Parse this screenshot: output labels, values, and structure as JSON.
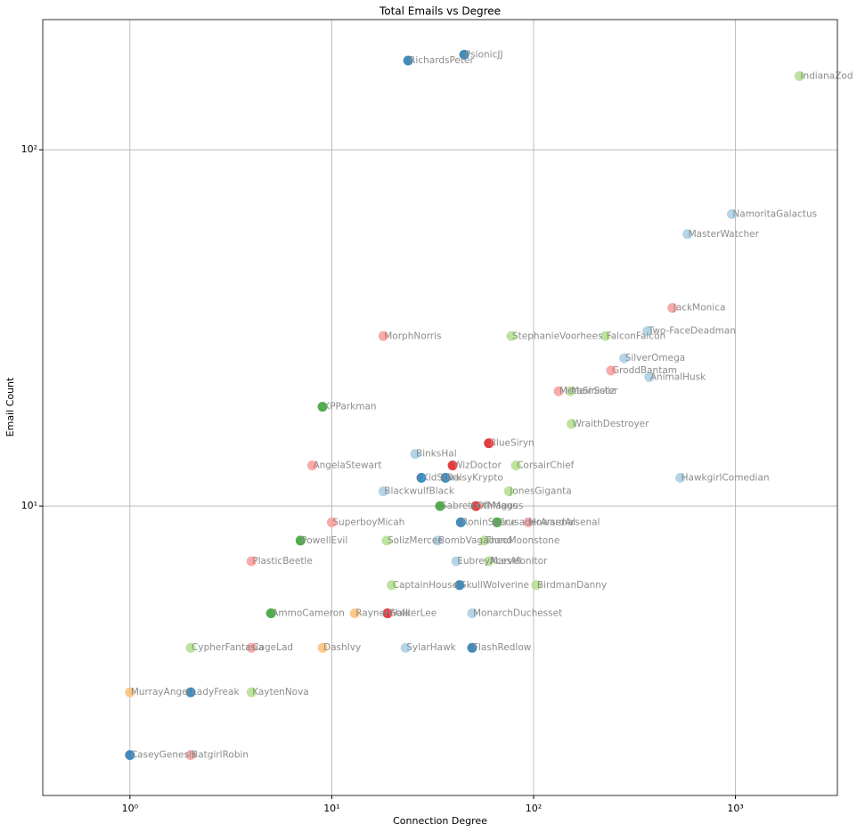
{
  "chart_data": {
    "type": "scatter",
    "title": "Total Emails vs Degree",
    "x_label": "Connection Degree",
    "y_label": "Email Count",
    "log_x": true,
    "log_y": true,
    "grid": true,
    "xlim": [
      0.37,
      3200
    ],
    "ylim": [
      1.54,
      232
    ],
    "xticks": [
      {
        "value": 1,
        "label": "10⁰"
      },
      {
        "value": 10,
        "label": "10¹"
      },
      {
        "value": 100,
        "label": "10²"
      },
      {
        "value": 1000,
        "label": "10³"
      }
    ],
    "yticks": [
      {
        "value": 10,
        "label": "10¹"
      },
      {
        "value": 100,
        "label": "10²"
      }
    ],
    "labels": [
      "IndianaZod",
      "PsionicJJ",
      "RichardsPeter",
      "NamoritaGalactus",
      "MasterWatcher",
      "JackMonica",
      "Two-FaceDeadman",
      "StephanieVoorhees",
      "FalconFalcon",
      "MorphNorris",
      "SilverOmega",
      "GroddBantam",
      "AnimalHusk",
      "MetaSinister",
      "MainSoliz",
      "XPParkman",
      "WraithDestroyer",
      "BlueSiryn",
      "BinksHal",
      "AngelaStewart",
      "WizDoctor",
      "CorsairChief",
      "HawkgirlComedian",
      "KidStark",
      "DaisyKrypto",
      "BlackwulfBlack",
      "JonesGiganta",
      "SabretoothMagus",
      "OfMagus",
      "SuperboyMicah",
      "RoninSpace",
      "CrusaderArsenal",
      "HowardArsenal",
      "PowellEvil",
      "SolizMercer",
      "BombVagabond",
      "TheoMoonstone",
      "PlasticBeetle",
      "EubreyMarvel",
      "AcesMonitor",
      "CaptainHouse",
      "BirdmanDanny",
      "SkullWolverine",
      "AmmoCameron",
      "RaynerGold",
      "WalkerLee",
      "MonarchDuchesset",
      "CypherFantasia",
      "CageLad",
      "DashIvy",
      "SylarHawk",
      "FlashRedlow",
      "MurrayAngel",
      "LadyFreak",
      "KaytenNova",
      "CaseyGenesis",
      "BatgirlRobin"
    ],
    "x": [
      2075,
      45.3,
      23.9,
      959,
      578,
      487,
      366,
      77.6,
      227,
      18,
      281,
      242,
      374,
      133,
      152,
      9,
      154,
      60,
      25.9,
      8,
      39.7,
      81.7,
      533,
      27.8,
      36.6,
      18,
      75.4,
      34.4,
      51.8,
      10,
      43.6,
      65.9,
      94,
      7,
      18.7,
      33.4,
      57,
      4,
      41.4,
      60,
      19.8,
      103,
      43,
      5,
      13,
      18.9,
      49.6,
      2,
      4,
      9,
      23.2,
      49.6,
      1,
      2,
      4,
      1,
      2
    ],
    "y": [
      161,
      185,
      178,
      66,
      58,
      36,
      31,
      30,
      30,
      30,
      26,
      24,
      23,
      21,
      21,
      19,
      17,
      15,
      14,
      13,
      13,
      13,
      12,
      12,
      12,
      11,
      11,
      10,
      10,
      9,
      9,
      9,
      9,
      8,
      8,
      8,
      8,
      7,
      7,
      7,
      6,
      6,
      6,
      5,
      5,
      5,
      5,
      4,
      4,
      4,
      4,
      4,
      3,
      3,
      3,
      2,
      2
    ],
    "colors": [
      "#b2df8a",
      "#1f78b4",
      "#1f78b4",
      "#a6cee3",
      "#a6cee3",
      "#fb9a99",
      "#a6cee3",
      "#b2df8a",
      "#b2df8a",
      "#fb9a99",
      "#a6cee3",
      "#fb9a99",
      "#a6cee3",
      "#fb9a99",
      "#b2df8a",
      "#33a02c",
      "#b2df8a",
      "#e31a1c",
      "#a6cee3",
      "#fb9a99",
      "#e31a1c",
      "#b2df8a",
      "#a6cee3",
      "#1f78b4",
      "#1f78b4",
      "#a6cee3",
      "#b2df8a",
      "#33a02c",
      "#e31a1c",
      "#fb9a99",
      "#1f78b4",
      "#33a02c",
      "#fb9a99",
      "#33a02c",
      "#b2df8a",
      "#a6cee3",
      "#b2df8a",
      "#fb9a99",
      "#a6cee3",
      "#b2df8a",
      "#b2df8a",
      "#b2df8a",
      "#1f78b4",
      "#33a02c",
      "#fdbf6f",
      "#e31a1c",
      "#a6cee3",
      "#b2df8a",
      "#fb9a99",
      "#fdbf6f",
      "#a6cee3",
      "#1f78b4",
      "#fdbf6f",
      "#1f78b4",
      "#b2df8a",
      "#1f78b4",
      "#fb9a99"
    ]
  }
}
